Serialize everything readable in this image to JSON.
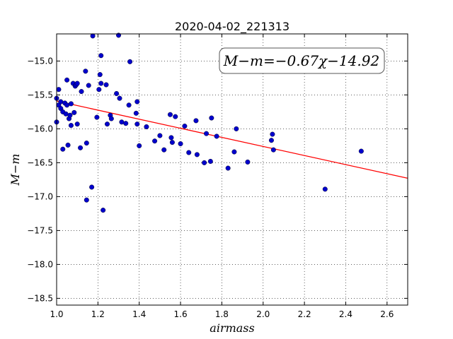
{
  "chart_data": {
    "type": "scatter",
    "title": "2020-04-02_221313",
    "xlabel": "airmass",
    "ylabel": "M−m",
    "xlim": [
      1.0,
      2.7
    ],
    "ylim": [
      -18.6,
      -14.6
    ],
    "y_inverted": true,
    "grid": true,
    "x_ticks": [
      1.0,
      1.2,
      1.4,
      1.6,
      1.8,
      2.0,
      2.2,
      2.4,
      2.6
    ],
    "x_tick_labels": [
      "1.0",
      "1.2",
      "1.4",
      "1.6",
      "1.8",
      "2.0",
      "2.2",
      "2.4",
      "2.6"
    ],
    "y_ticks": [
      -15.0,
      -15.5,
      -16.0,
      -16.5,
      -17.0,
      -17.5,
      -18.0,
      -18.5
    ],
    "y_tick_labels": [
      "−15.0",
      "−15.5",
      "−16.0",
      "−16.5",
      "−17.0",
      "−17.5",
      "−18.0",
      "−18.5"
    ],
    "annotation": "M−m=−0.67χ−14.92",
    "annotation_placement": "top-right",
    "fit": {
      "slope": -0.67,
      "intercept": -14.92,
      "color": "#ff0000"
    },
    "point_color": "#0000cc",
    "points": [
      [
        1.0,
        -15.55
      ],
      [
        1.0,
        -15.9
      ],
      [
        1.01,
        -15.65
      ],
      [
        1.01,
        -15.42
      ],
      [
        1.02,
        -15.6
      ],
      [
        1.02,
        -15.7
      ],
      [
        1.03,
        -15.75
      ],
      [
        1.03,
        -16.3
      ],
      [
        1.04,
        -15.62
      ],
      [
        1.045,
        -15.78
      ],
      [
        1.05,
        -15.28
      ],
      [
        1.05,
        -15.65
      ],
      [
        1.055,
        -16.24
      ],
      [
        1.06,
        -15.85
      ],
      [
        1.065,
        -15.8
      ],
      [
        1.07,
        -15.63
      ],
      [
        1.07,
        -15.95
      ],
      [
        1.08,
        -15.33
      ],
      [
        1.085,
        -15.76
      ],
      [
        1.09,
        -15.37
      ],
      [
        1.095,
        -15.35
      ],
      [
        1.1,
        -15.93
      ],
      [
        1.1,
        -15.33
      ],
      [
        1.115,
        -16.28
      ],
      [
        1.12,
        -15.45
      ],
      [
        1.14,
        -15.15
      ],
      [
        1.145,
        -16.21
      ],
      [
        1.145,
        -17.05
      ],
      [
        1.155,
        -15.36
      ],
      [
        1.17,
        -16.86
      ],
      [
        1.175,
        -14.63
      ],
      [
        1.195,
        -15.83
      ],
      [
        1.205,
        -15.42
      ],
      [
        1.21,
        -15.2
      ],
      [
        1.215,
        -15.33
      ],
      [
        1.215,
        -14.92
      ],
      [
        1.225,
        -17.2
      ],
      [
        1.24,
        -15.35
      ],
      [
        1.245,
        -15.93
      ],
      [
        1.26,
        -15.8
      ],
      [
        1.265,
        -15.85
      ],
      [
        1.29,
        -15.48
      ],
      [
        1.3,
        -14.62
      ],
      [
        1.305,
        -15.55
      ],
      [
        1.315,
        -15.9
      ],
      [
        1.335,
        -15.92
      ],
      [
        1.35,
        -15.65
      ],
      [
        1.355,
        -15.01
      ],
      [
        1.385,
        -15.77
      ],
      [
        1.39,
        -15.6
      ],
      [
        1.39,
        -15.93
      ],
      [
        1.4,
        -16.25
      ],
      [
        1.435,
        -15.97
      ],
      [
        1.475,
        -16.18
      ],
      [
        1.5,
        -16.1
      ],
      [
        1.52,
        -16.31
      ],
      [
        1.55,
        -15.79
      ],
      [
        1.555,
        -16.13
      ],
      [
        1.56,
        -16.2
      ],
      [
        1.575,
        -15.82
      ],
      [
        1.6,
        -16.22
      ],
      [
        1.62,
        -15.96
      ],
      [
        1.64,
        -16.35
      ],
      [
        1.675,
        -15.88
      ],
      [
        1.68,
        -16.38
      ],
      [
        1.715,
        -16.5
      ],
      [
        1.725,
        -16.07
      ],
      [
        1.745,
        -16.48
      ],
      [
        1.75,
        -15.84
      ],
      [
        1.775,
        -16.11
      ],
      [
        1.83,
        -16.58
      ],
      [
        1.86,
        -16.34
      ],
      [
        1.87,
        -16.0
      ],
      [
        1.925,
        -16.49
      ],
      [
        2.04,
        -16.17
      ],
      [
        2.045,
        -16.08
      ],
      [
        2.05,
        -16.31
      ],
      [
        2.3,
        -16.89
      ],
      [
        2.475,
        -16.33
      ]
    ]
  }
}
